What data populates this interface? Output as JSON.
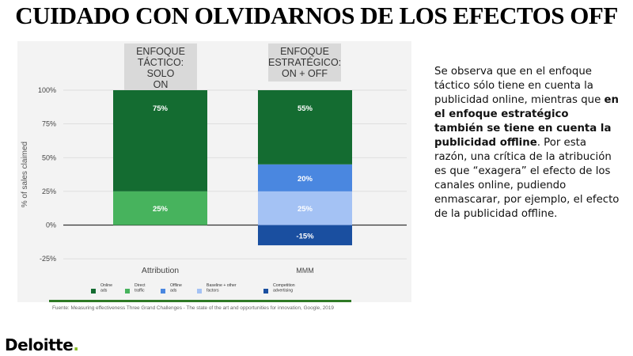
{
  "title": "CUIDADO CON OLVIDARNOS DE LOS EFECTOS OFF",
  "headers": {
    "left": "ENFOQUE\nTÁCTICO: SOLO\nON",
    "right": "ENFOQUE\nESTRATÉGICO:\nON + OFF"
  },
  "description": {
    "part1": "Se observa que en el enfoque táctico sólo tiene en cuenta la publicidad online, mientras que ",
    "bold": "en el enfoque estratégico también se tiene en cuenta la publicidad offline",
    "part2": ". Por esta razón, una crítica de la atribución es que “exagera” el efecto de los canales online, pudiendo enmascarar, por ejemplo, el efecto de la publicidad offline."
  },
  "source": "Fuente: Measuring effectiveness Three Grand Challenges - The state of the art and opportunities for innovation, Google, 2019",
  "brand": {
    "name": "Deloitte",
    "dot": "."
  },
  "colors": {
    "online_ads": "#146c31",
    "direct_traffic": "#47b35d",
    "offline_ads": "#4a87e0",
    "baseline": "#a4c2f4",
    "competition": "#1a4fa0"
  },
  "chart_data": {
    "type": "bar",
    "stacked": true,
    "categories": [
      "Attribution",
      "MMM"
    ],
    "ylabel": "% of sales claimed",
    "ylim": [
      -25,
      100
    ],
    "yticks": [
      100,
      75,
      50,
      25,
      0,
      -25
    ],
    "yticklabels": [
      "100%",
      "75%",
      "50%",
      "25%",
      "0%",
      "-25%"
    ],
    "series": [
      {
        "name": "Direct traffic",
        "color": "#47b35d",
        "values": [
          25,
          null
        ],
        "labels": [
          "25%",
          null
        ]
      },
      {
        "name": "Baseline + other factors",
        "color": "#a4c2f4",
        "values": [
          null,
          25
        ],
        "labels": [
          null,
          "25%"
        ]
      },
      {
        "name": "Offline ads",
        "color": "#4a87e0",
        "values": [
          null,
          20
        ],
        "labels": [
          null,
          "20%"
        ]
      },
      {
        "name": "Online ads",
        "color": "#146c31",
        "values": [
          75,
          55
        ],
        "labels": [
          "75%",
          "55%"
        ]
      },
      {
        "name": "Competition advertising",
        "color": "#1a4fa0",
        "values": [
          null,
          -15
        ],
        "labels": [
          null,
          "-15%"
        ]
      }
    ],
    "legend": [
      {
        "name": "Online ads",
        "color": "#146c31"
      },
      {
        "name": "Direct traffic",
        "color": "#47b35d"
      },
      {
        "name": "Offline ads",
        "color": "#4a87e0"
      },
      {
        "name": "Baseline + other factors",
        "color": "#a4c2f4"
      },
      {
        "name": "Competition advertising",
        "color": "#1a4fa0"
      }
    ],
    "legend_position": "bottom"
  }
}
